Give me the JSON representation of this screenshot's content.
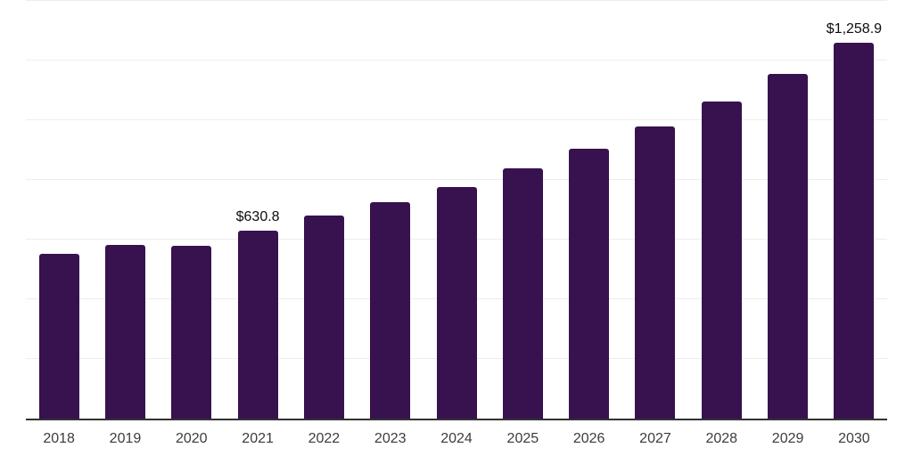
{
  "chart_data": {
    "type": "bar",
    "title": "",
    "xlabel": "",
    "ylabel": "",
    "categories": [
      "2018",
      "2019",
      "2020",
      "2021",
      "2022",
      "2023",
      "2024",
      "2025",
      "2026",
      "2027",
      "2028",
      "2029",
      "2030"
    ],
    "values": [
      552,
      582,
      580,
      630.8,
      680,
      725,
      776,
      838,
      904,
      978,
      1062,
      1154,
      1258.9
    ],
    "data_labels": [
      "",
      "",
      "",
      "$630.8",
      "",
      "",
      "",
      "",
      "",
      "",
      "",
      "",
      "$1,258.9"
    ],
    "ylim": [
      0,
      1400
    ],
    "grid_step": 200,
    "grid": "horizontal-only",
    "y_tick_labels_visible": false,
    "legend_position": "none",
    "colors": {
      "bar": "#37124E",
      "axis_line": "#333333",
      "gridline": "#ededed",
      "tick_label": "#3c3c3c",
      "value_label": "#0d0d0d",
      "background": "#ffffff"
    }
  }
}
